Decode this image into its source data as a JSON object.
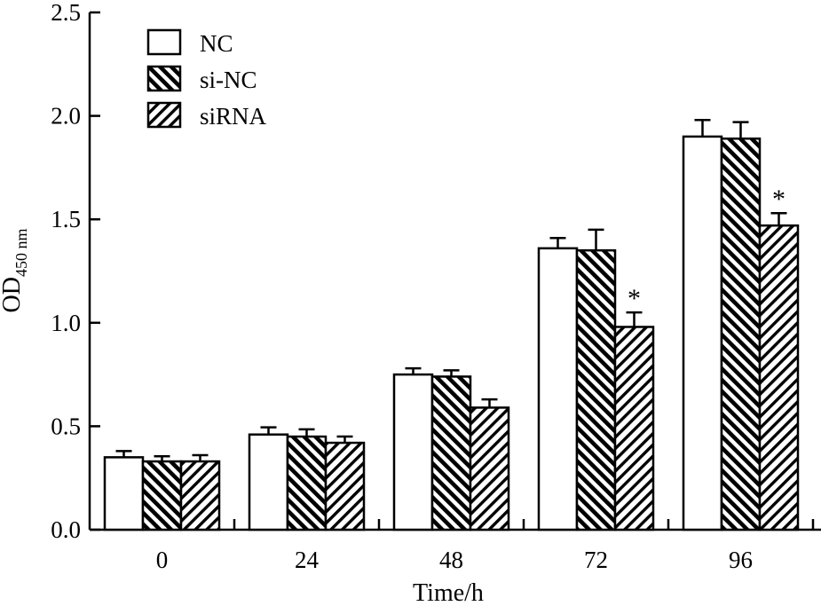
{
  "chart_data": {
    "type": "bar",
    "title": "",
    "xlabel": "Time/h",
    "ylabel": "OD",
    "ylabel_subscript": "450 nm",
    "categories": [
      "0",
      "24",
      "48",
      "72",
      "96"
    ],
    "ylim": [
      0,
      2.5
    ],
    "yticks": [
      0.0,
      0.5,
      1.0,
      1.5,
      2.0,
      2.5
    ],
    "ytick_labels": [
      "0.0",
      "0.5",
      "1.0",
      "1.5",
      "2.0",
      "2.5"
    ],
    "grid": false,
    "legend_position": "top-left",
    "series": [
      {
        "name": "NC",
        "pattern": "blank",
        "values": [
          0.35,
          0.46,
          0.75,
          1.36,
          1.9
        ],
        "errors": [
          0.03,
          0.035,
          0.03,
          0.05,
          0.08
        ]
      },
      {
        "name": "si-NC",
        "pattern": "hatch-backslash",
        "values": [
          0.33,
          0.45,
          0.74,
          1.35,
          1.89
        ],
        "errors": [
          0.025,
          0.035,
          0.03,
          0.1,
          0.08
        ]
      },
      {
        "name": "siRNA",
        "pattern": "hatch-slash",
        "values": [
          0.33,
          0.42,
          0.59,
          0.98,
          1.47
        ],
        "errors": [
          0.03,
          0.03,
          0.04,
          0.07,
          0.06
        ]
      }
    ],
    "significance": [
      {
        "series": "siRNA",
        "category": "72",
        "label": "*"
      },
      {
        "series": "siRNA",
        "category": "96",
        "label": "*"
      }
    ]
  }
}
